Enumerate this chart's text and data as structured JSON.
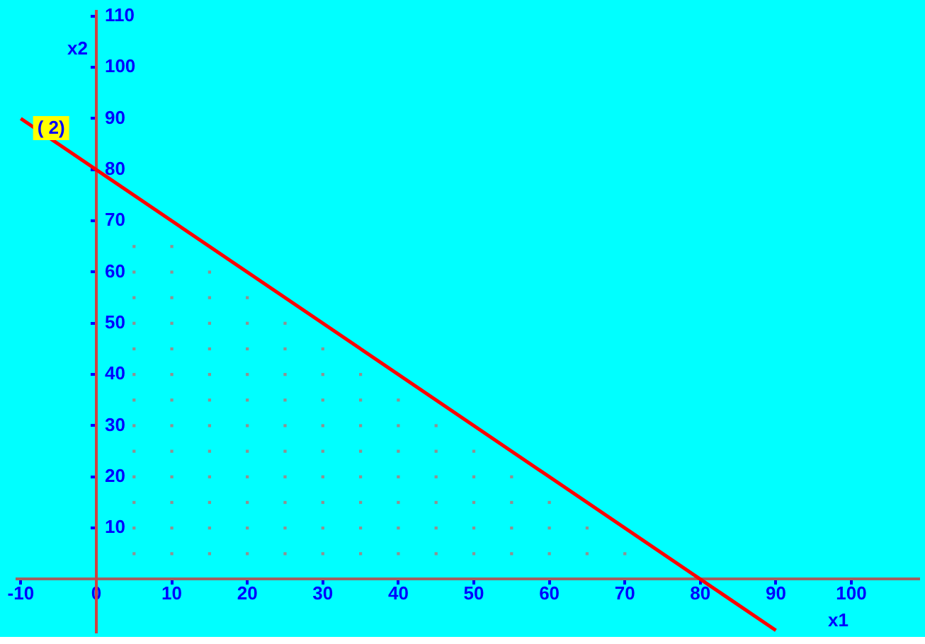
{
  "chart_data": {
    "type": "scatter",
    "xlabel": "x1",
    "ylabel": "x2",
    "xlim": [
      -10.5,
      109
    ],
    "ylim": [
      -10.5,
      111
    ],
    "xticks": [
      -10,
      0,
      10,
      20,
      30,
      40,
      50,
      60,
      70,
      80,
      90,
      100
    ],
    "yticks": [
      10,
      20,
      30,
      40,
      50,
      60,
      70,
      80,
      90,
      100,
      110
    ],
    "grid": false,
    "legend": false,
    "annotations": [
      {
        "text": "( 2)",
        "x": -8,
        "y": 88
      }
    ],
    "series": [
      {
        "type": "line",
        "color": "#ff0000",
        "x": [
          -10,
          90
        ],
        "values": [
          90,
          -10
        ],
        "line_style": "solid"
      },
      {
        "type": "scatter",
        "color": "#909090",
        "marker": "square",
        "x": [
          5,
          10,
          15,
          20,
          25,
          30,
          35,
          40,
          45,
          50,
          55,
          60,
          65,
          70,
          5,
          10,
          15,
          20,
          25,
          30,
          35,
          40,
          45,
          50,
          55,
          60,
          65,
          5,
          10,
          15,
          20,
          25,
          30,
          35,
          40,
          45,
          50,
          55,
          60,
          5,
          10,
          15,
          20,
          25,
          30,
          35,
          40,
          45,
          50,
          55,
          5,
          10,
          15,
          20,
          25,
          30,
          35,
          40,
          45,
          50,
          5,
          10,
          15,
          20,
          25,
          30,
          35,
          40,
          45,
          5,
          10,
          15,
          20,
          25,
          30,
          35,
          40,
          5,
          10,
          15,
          20,
          25,
          30,
          35,
          5,
          10,
          15,
          20,
          25,
          30,
          5,
          10,
          15,
          20,
          25,
          5,
          10,
          15,
          20,
          5,
          10,
          15,
          5,
          10
        ],
        "values": [
          5,
          5,
          5,
          5,
          5,
          5,
          5,
          5,
          5,
          5,
          5,
          5,
          5,
          5,
          10,
          10,
          10,
          10,
          10,
          10,
          10,
          10,
          10,
          10,
          10,
          10,
          10,
          15,
          15,
          15,
          15,
          15,
          15,
          15,
          15,
          15,
          15,
          15,
          15,
          20,
          20,
          20,
          20,
          20,
          20,
          20,
          20,
          20,
          20,
          20,
          25,
          25,
          25,
          25,
          25,
          25,
          25,
          25,
          25,
          25,
          30,
          30,
          30,
          30,
          30,
          30,
          30,
          30,
          30,
          35,
          35,
          35,
          35,
          35,
          35,
          35,
          35,
          40,
          40,
          40,
          40,
          40,
          40,
          40,
          45,
          45,
          45,
          45,
          45,
          45,
          50,
          50,
          50,
          50,
          50,
          55,
          55,
          55,
          55,
          60,
          60,
          60,
          65,
          65
        ]
      }
    ]
  }
}
